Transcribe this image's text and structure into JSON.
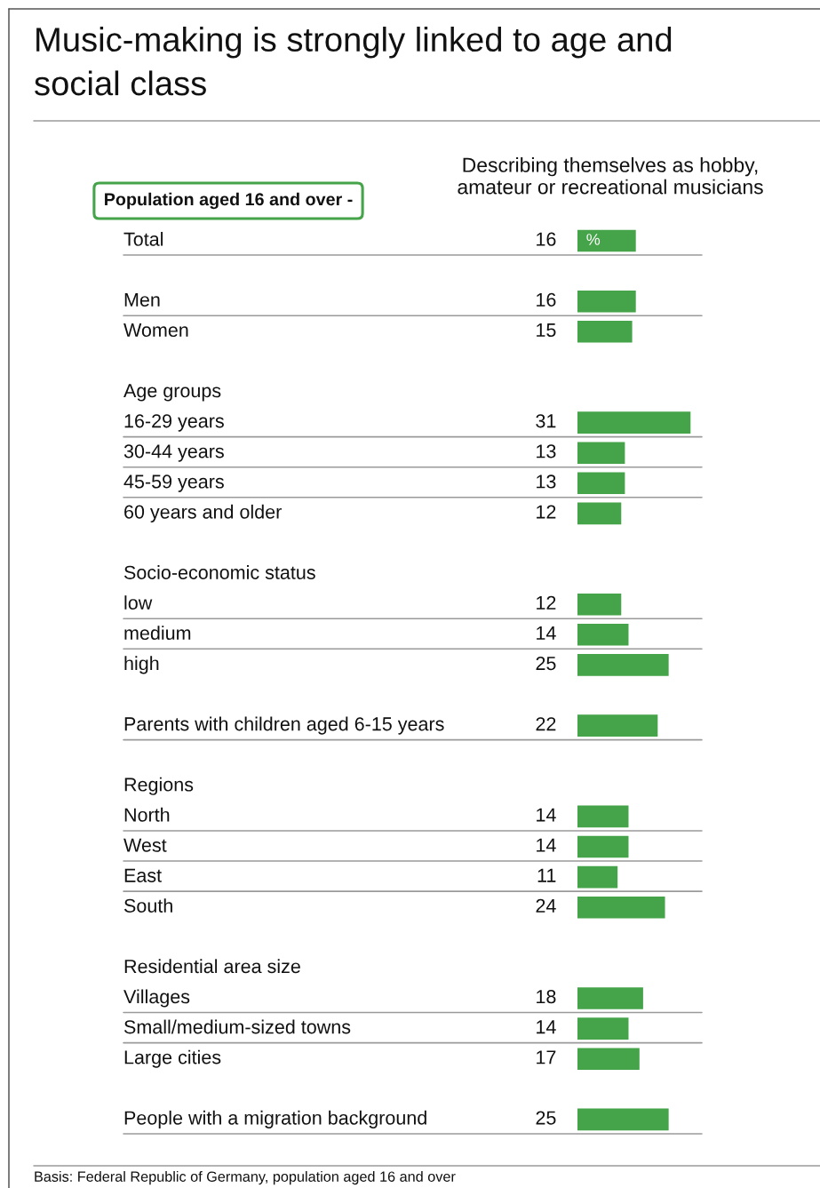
{
  "chart_data": {
    "type": "bar",
    "orientation": "horizontal",
    "title": "Music-making is strongly linked to age and\nsocial class",
    "xlabel": "Describing themselves as hobby,\namateur or recreational musicians",
    "ylabel": "Population aged 16 and over -",
    "categories": [
      "Total",
      null,
      "Men",
      "Women",
      null,
      "Age groups",
      "16-29 years",
      "30-44 years",
      "45-59 years",
      "60 years and older",
      null,
      "Socio-economic status",
      "low",
      "medium",
      "high",
      null,
      "Parents with children aged 6-15 years",
      null,
      "Regions",
      "North",
      "West",
      "East",
      "South",
      null,
      "Residential area size",
      "Villages",
      "Small/medium-sized towns",
      "Large cities",
      null,
      "People with a migration background"
    ],
    "values": [
      16,
      null,
      16,
      15,
      null,
      null,
      31,
      13,
      13,
      12,
      null,
      null,
      12,
      14,
      25,
      null,
      22,
      null,
      null,
      14,
      14,
      11,
      24,
      null,
      null,
      18,
      14,
      17,
      null,
      25
    ],
    "color": "#45a349",
    "data_labels": true,
    "grid": "y",
    "annotations": [
      {
        "text": "%",
        "y": "Total"
      },
      "Basis: Federal Republic of Germany, population aged 16 and over"
    ]
  }
}
